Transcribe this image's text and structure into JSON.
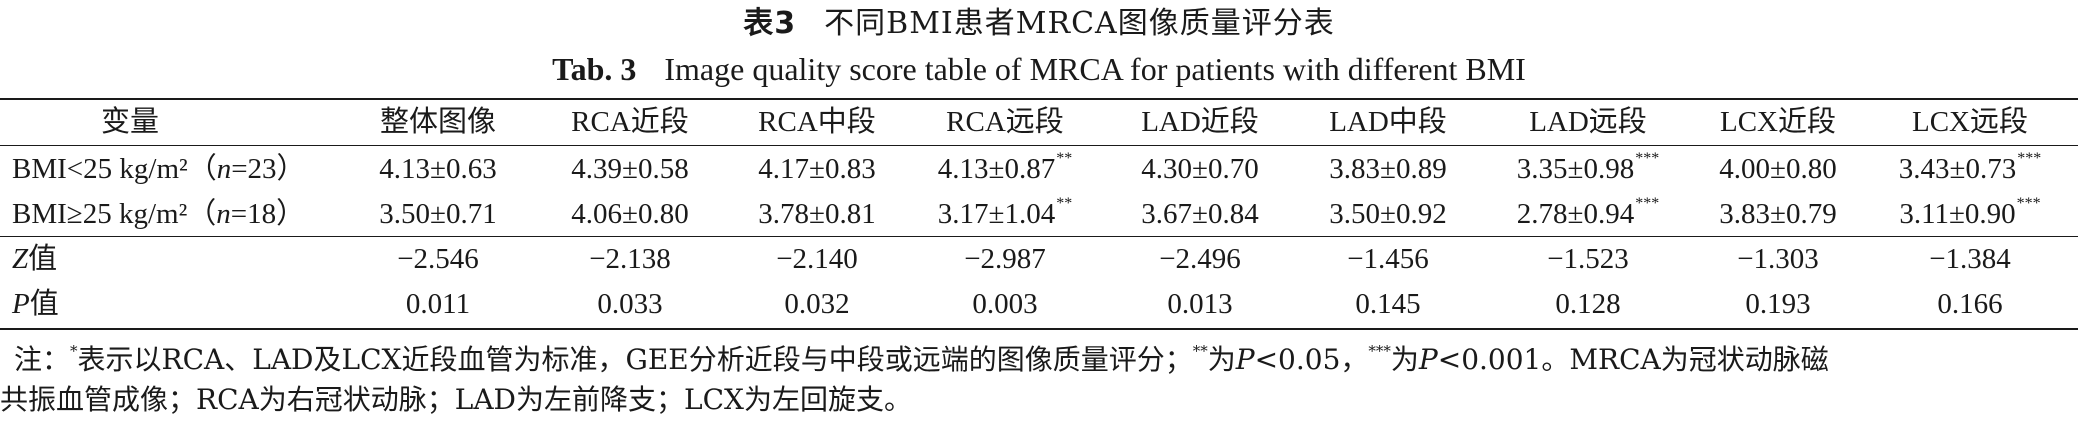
{
  "caption": {
    "cn_label": "表3",
    "cn_title": "不同BMI患者MRCA图像质量评分表",
    "en_label": "Tab. 3",
    "en_title": "Image quality score table of MRCA for patients with different BMI"
  },
  "table": {
    "headers": [
      "变量",
      "整体图像",
      "RCA近段",
      "RCA中段",
      "RCA远段",
      "LAD近段",
      "LAD中段",
      "LAD远段",
      "LCX近段",
      "LCX远段"
    ],
    "rows": [
      {
        "label_pre": "BMI<25 kg/m²（",
        "label_it": "n",
        "label_post": "=23）",
        "cells": [
          {
            "v": "4.13±0.63",
            "s": ""
          },
          {
            "v": "4.39±0.58",
            "s": ""
          },
          {
            "v": "4.17±0.83",
            "s": ""
          },
          {
            "v": "4.13±0.87",
            "s": "**"
          },
          {
            "v": "4.30±0.70",
            "s": ""
          },
          {
            "v": "3.83±0.89",
            "s": ""
          },
          {
            "v": "3.35±0.98",
            "s": "***"
          },
          {
            "v": "4.00±0.80",
            "s": ""
          },
          {
            "v": "3.43±0.73",
            "s": "***"
          }
        ]
      },
      {
        "label_pre": "BMI≥25 kg/m²（",
        "label_it": "n",
        "label_post": "=18）",
        "cells": [
          {
            "v": "3.50±0.71",
            "s": ""
          },
          {
            "v": "4.06±0.80",
            "s": ""
          },
          {
            "v": "3.78±0.81",
            "s": ""
          },
          {
            "v": "3.17±1.04",
            "s": "**"
          },
          {
            "v": "3.67±0.84",
            "s": ""
          },
          {
            "v": "3.50±0.92",
            "s": ""
          },
          {
            "v": "2.78±0.94",
            "s": "***"
          },
          {
            "v": "3.83±0.79",
            "s": ""
          },
          {
            "v": "3.11±0.90",
            "s": "***"
          }
        ]
      },
      {
        "label_pre": "",
        "label_it": "Z",
        "label_post": "值",
        "cells": [
          {
            "v": "−2.546",
            "s": ""
          },
          {
            "v": "−2.138",
            "s": ""
          },
          {
            "v": "−2.140",
            "s": ""
          },
          {
            "v": "−2.987",
            "s": ""
          },
          {
            "v": "−2.496",
            "s": ""
          },
          {
            "v": "−1.456",
            "s": ""
          },
          {
            "v": "−1.523",
            "s": ""
          },
          {
            "v": "−1.303",
            "s": ""
          },
          {
            "v": "−1.384",
            "s": ""
          }
        ]
      },
      {
        "label_pre": "",
        "label_it": "P",
        "label_post": "值",
        "cells": [
          {
            "v": "0.011",
            "s": ""
          },
          {
            "v": "0.033",
            "s": ""
          },
          {
            "v": "0.032",
            "s": ""
          },
          {
            "v": "0.003",
            "s": ""
          },
          {
            "v": "0.013",
            "s": ""
          },
          {
            "v": "0.145",
            "s": ""
          },
          {
            "v": "0.128",
            "s": ""
          },
          {
            "v": "0.193",
            "s": ""
          },
          {
            "v": "0.166",
            "s": ""
          }
        ]
      }
    ]
  },
  "footnote": {
    "lead": "注：",
    "sup1": "*",
    "part1": "表示以RCA、LAD及LCX近段血管为标准，GEE分析近段与中段或远端的图像质量评分；",
    "sup2": "**",
    "part2a": "为",
    "p1": "P",
    "part2b": "<0.05，",
    "sup3": "***",
    "part3a": "为",
    "p2": "P",
    "part3b": "<0.001。MRCA为冠状动脉磁",
    "line2": "共振血管成像；RCA为右冠状动脉；LAD为左前降支；LCX为左回旋支。"
  }
}
